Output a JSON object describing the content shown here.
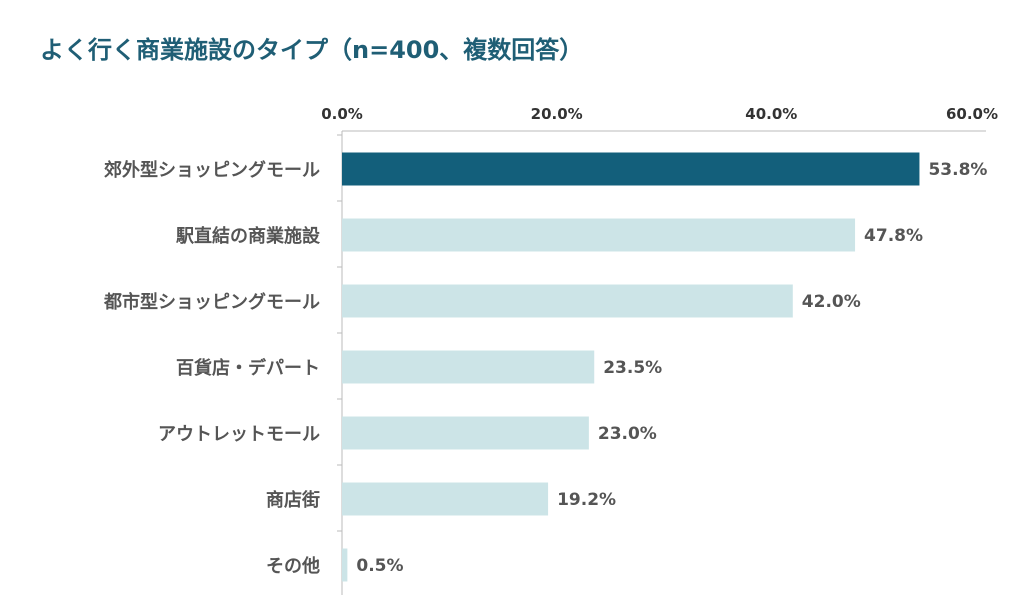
{
  "chart_data": {
    "type": "bar",
    "orientation": "horizontal",
    "title": "よく行く商業施設のタイプ（n=400、複数回答）",
    "categories": [
      "郊外型ショッピングモール",
      "駅直結の商業施設",
      "都市型ショッピングモール",
      "百貨店・デパート",
      "アウトレットモール",
      "商店街",
      "その他"
    ],
    "values": [
      53.8,
      47.8,
      42.0,
      23.5,
      23.0,
      19.2,
      0.5
    ],
    "value_labels": [
      "53.8%",
      "47.8%",
      "42.0%",
      "23.5%",
      "23.0%",
      "19.2%",
      "0.5%"
    ],
    "xticks": [
      0,
      20,
      40,
      60
    ],
    "xtick_labels": [
      "0.0%",
      "20.0%",
      "40.0%",
      "60.0%"
    ],
    "xlim": [
      0,
      60
    ],
    "axis_position": "top",
    "grid": false,
    "legend": "none",
    "colors": {
      "highlight": "#135f7b",
      "bar": "#cce4e7",
      "title": "#1f5e75"
    }
  }
}
